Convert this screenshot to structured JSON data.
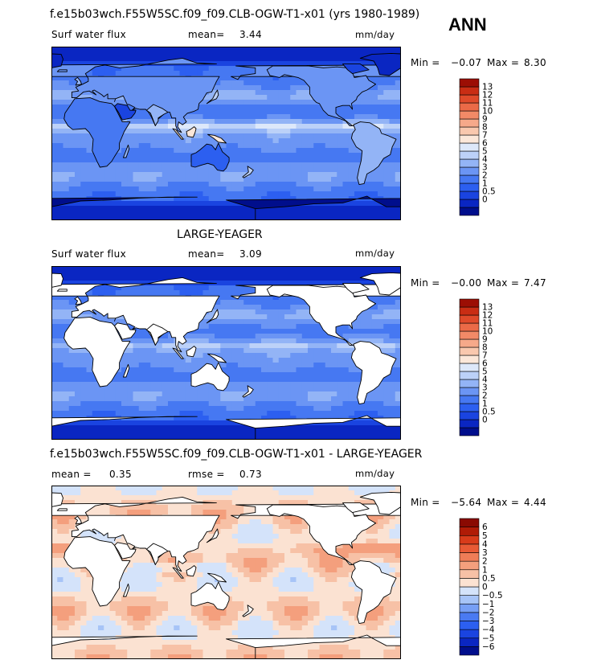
{
  "header": {
    "season": "ANN"
  },
  "colors": {
    "abs_scale": [
      "#000e8c",
      "#0a26c2",
      "#1a44e0",
      "#2c5ff0",
      "#4678f2",
      "#6b95f4",
      "#93b4f6",
      "#bcd1f8",
      "#dde8fa",
      "#fbe7d9",
      "#f9c8ae",
      "#f6a98a",
      "#f28a67",
      "#eb6a47",
      "#df4a2a",
      "#c92d14",
      "#9c0e04"
    ],
    "diff_scale": [
      "#000e8c",
      "#0a26c2",
      "#1a44e0",
      "#2c5ff0",
      "#4a7af2",
      "#779ff5",
      "#a7c4f7",
      "#d4e3fa",
      "#fbe2d2",
      "#f7c1a6",
      "#f49f7d",
      "#ef7d57",
      "#e85a35",
      "#d83b1a",
      "#b01b06",
      "#8a0a02"
    ],
    "land": "#ffffff"
  },
  "panels": [
    {
      "title": "f.e15b03wch.F55W5SC.f09_f09.CLB-OGW-T1-x01 (yrs 1980-1989)",
      "variable": "Surf water flux",
      "mean_label": "mean=",
      "mean_value": "3.44",
      "units": "mm/day",
      "min_label": "Min =",
      "min_value": "−0.07",
      "max_label": "Max =",
      "max_value": "8.30"
    },
    {
      "title": "LARGE-YEAGER",
      "variable": "Surf water flux",
      "mean_label": "mean=",
      "mean_value": "3.09",
      "units": "mm/day",
      "min_label": "Min =",
      "min_value": "−0.00",
      "max_label": "Max =",
      "max_value": "7.47"
    },
    {
      "title": "f.e15b03wch.F55W5SC.f09_f09.CLB-OGW-T1-x01 - LARGE-YEAGER",
      "mean_label": "mean =",
      "mean_value": "0.35",
      "rmse_label": "rmse =",
      "rmse_value": "0.73",
      "units": "mm/day",
      "min_label": "Min =",
      "min_value": "−5.64",
      "max_label": "Max =",
      "max_value": "4.44"
    }
  ],
  "chart_data": [
    {
      "type": "heatmap",
      "title": "f.e15b03wch.F55W5SC.f09_f09.CLB-OGW-T1-x01 (yrs 1980-1989)",
      "variable": "Surf water flux",
      "units": "mm/day",
      "mean": 3.44,
      "min": -0.07,
      "max": 8.3,
      "colorbar_levels": [
        "13",
        "12",
        "11",
        "10",
        "9",
        "8",
        "7",
        "6",
        "5",
        "4",
        "3",
        "2",
        "1",
        "0.5",
        "0"
      ],
      "colorbar_values": [
        0,
        0.5,
        1,
        2,
        3,
        4,
        5,
        6,
        7,
        8,
        9,
        10,
        11,
        12,
        13
      ]
    },
    {
      "type": "heatmap",
      "title": "LARGE-YEAGER",
      "variable": "Surf water flux",
      "units": "mm/day",
      "mean": 3.09,
      "min": -0.0,
      "max": 7.47,
      "colorbar_levels": [
        "13",
        "12",
        "11",
        "10",
        "9",
        "8",
        "7",
        "6",
        "5",
        "4",
        "3",
        "2",
        "1",
        "0.5",
        "0"
      ],
      "colorbar_values": [
        0,
        0.5,
        1,
        2,
        3,
        4,
        5,
        6,
        7,
        8,
        9,
        10,
        11,
        12,
        13
      ]
    },
    {
      "type": "heatmap",
      "title": "f.e15b03wch.F55W5SC.f09_f09.CLB-OGW-T1-x01 - LARGE-YEAGER",
      "units": "mm/day",
      "mean": 0.35,
      "rmse": 0.73,
      "min": -5.64,
      "max": 4.44,
      "colorbar_levels": [
        "6",
        "5",
        "4",
        "3",
        "2",
        "1",
        "0.5",
        "0",
        "−0.5",
        "−1",
        "−2",
        "−3",
        "−4",
        "−5",
        "−6"
      ],
      "colorbar_values": [
        -6,
        -5,
        -4,
        -3,
        -2,
        -1,
        -0.5,
        0,
        0.5,
        1,
        2,
        3,
        4,
        5,
        6
      ]
    }
  ]
}
